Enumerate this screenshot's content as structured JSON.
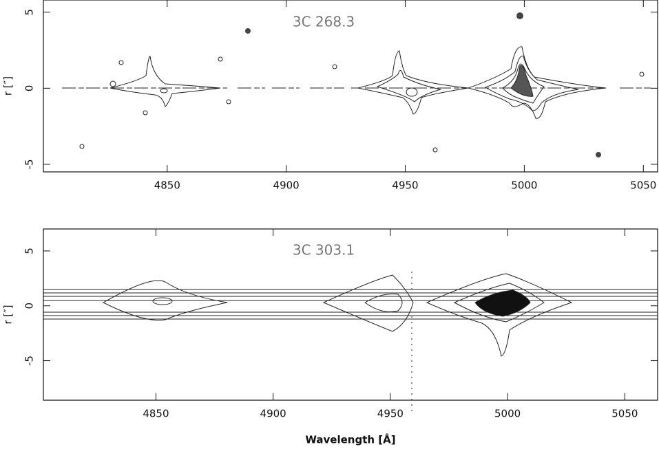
{
  "chart_data": [
    {
      "type": "contour",
      "title": "3C 268.3",
      "ylabel": "r [″]",
      "xlim": [
        4798,
        5056
      ],
      "xticks": [
        4850,
        4900,
        4950,
        5000,
        5050
      ],
      "ylim": [
        -5.5,
        5.8
      ],
      "yticks": [
        -5,
        0,
        5
      ]
    },
    {
      "type": "contour",
      "title": "3C 303.1",
      "ylabel": "r [″]",
      "xlabel": "Wavelength [Å]",
      "xlim": [
        4802,
        5064
      ],
      "xticks": [
        4850,
        4900,
        4950,
        5000,
        5050
      ],
      "ylim": [
        -8.6,
        7
      ],
      "yticks": [
        -5,
        0,
        5
      ]
    }
  ]
}
